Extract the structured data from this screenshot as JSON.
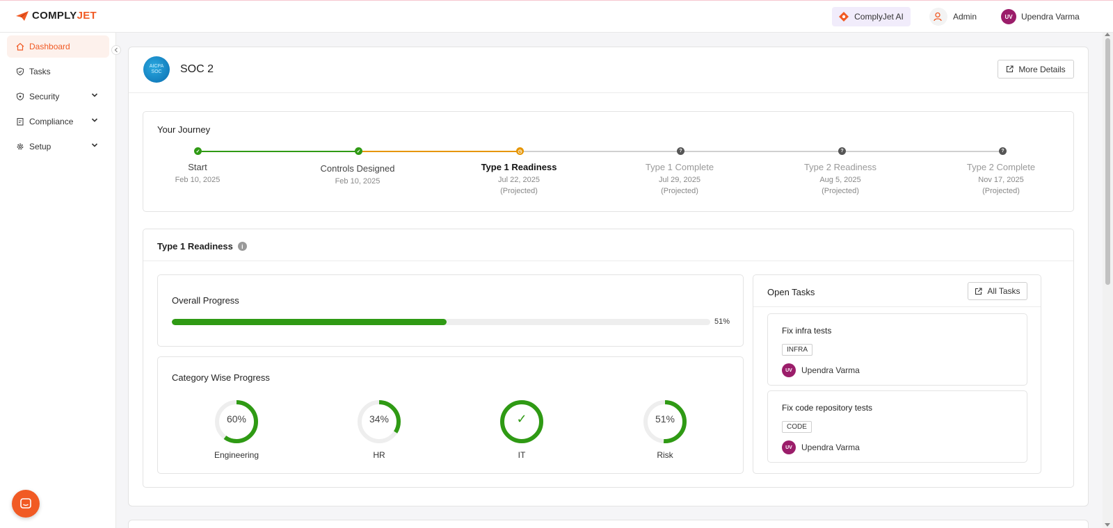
{
  "brand": {
    "name_part1": "COMPLY",
    "name_part2": "JET",
    "accent": "#f15a24"
  },
  "header": {
    "ai_button": "ComplyJet AI",
    "admin_label": "Admin",
    "user_initials": "UV",
    "user_name": "Upendra Varma"
  },
  "sidebar": {
    "items": [
      {
        "label": "Dashboard",
        "icon": "home-icon",
        "active": true
      },
      {
        "label": "Tasks",
        "icon": "shield-check-icon"
      },
      {
        "label": "Security",
        "icon": "shield-icon",
        "expandable": true
      },
      {
        "label": "Compliance",
        "icon": "clipboard-icon",
        "expandable": true
      },
      {
        "label": "Setup",
        "icon": "gear-icon",
        "expandable": true
      }
    ]
  },
  "framework": {
    "logo_text_1": "AICPA",
    "logo_text_2": "SOC",
    "title": "SOC 2",
    "more_details": "More Details"
  },
  "journey": {
    "title": "Your Journey",
    "steps": [
      {
        "label": "Start",
        "date": "Feb 10, 2025",
        "projected": "",
        "status": "done"
      },
      {
        "label": "Controls Designed",
        "date": "Feb 10, 2025",
        "projected": "",
        "status": "done"
      },
      {
        "label": "Type 1 Readiness",
        "date": "Jul 22, 2025",
        "projected": "(Projected)",
        "status": "current"
      },
      {
        "label": "Type 1 Complete",
        "date": "Jul 29, 2025",
        "projected": "(Projected)",
        "status": "pending"
      },
      {
        "label": "Type 2 Readiness",
        "date": "Aug 5, 2025",
        "projected": "(Projected)",
        "status": "pending"
      },
      {
        "label": "Type 2 Complete",
        "date": "Nov 17, 2025",
        "projected": "(Projected)",
        "status": "pending"
      }
    ],
    "colors": {
      "done": "#2f9a14",
      "current": "#e69500",
      "pending": "#555555"
    }
  },
  "readiness": {
    "title": "Type 1 Readiness",
    "info": "i",
    "overall": {
      "title": "Overall Progress",
      "percent": 51,
      "label": "51%"
    },
    "categories": {
      "title": "Category Wise Progress",
      "items": [
        {
          "name": "Engineering",
          "percent": 60,
          "label": "60%"
        },
        {
          "name": "HR",
          "percent": 34,
          "label": "34%"
        },
        {
          "name": "IT",
          "percent": 100,
          "label": "✓"
        },
        {
          "name": "Risk",
          "percent": 51,
          "label": "51%"
        }
      ]
    },
    "open_tasks": {
      "title": "Open Tasks",
      "all_tasks": "All Tasks",
      "tasks": [
        {
          "title": "Fix infra tests",
          "tag": "INFRA",
          "assignee_initials": "UV",
          "assignee": "Upendra Varma"
        },
        {
          "title": "Fix code repository tests",
          "tag": "CODE",
          "assignee_initials": "UV",
          "assignee": "Upendra Varma"
        }
      ]
    }
  }
}
